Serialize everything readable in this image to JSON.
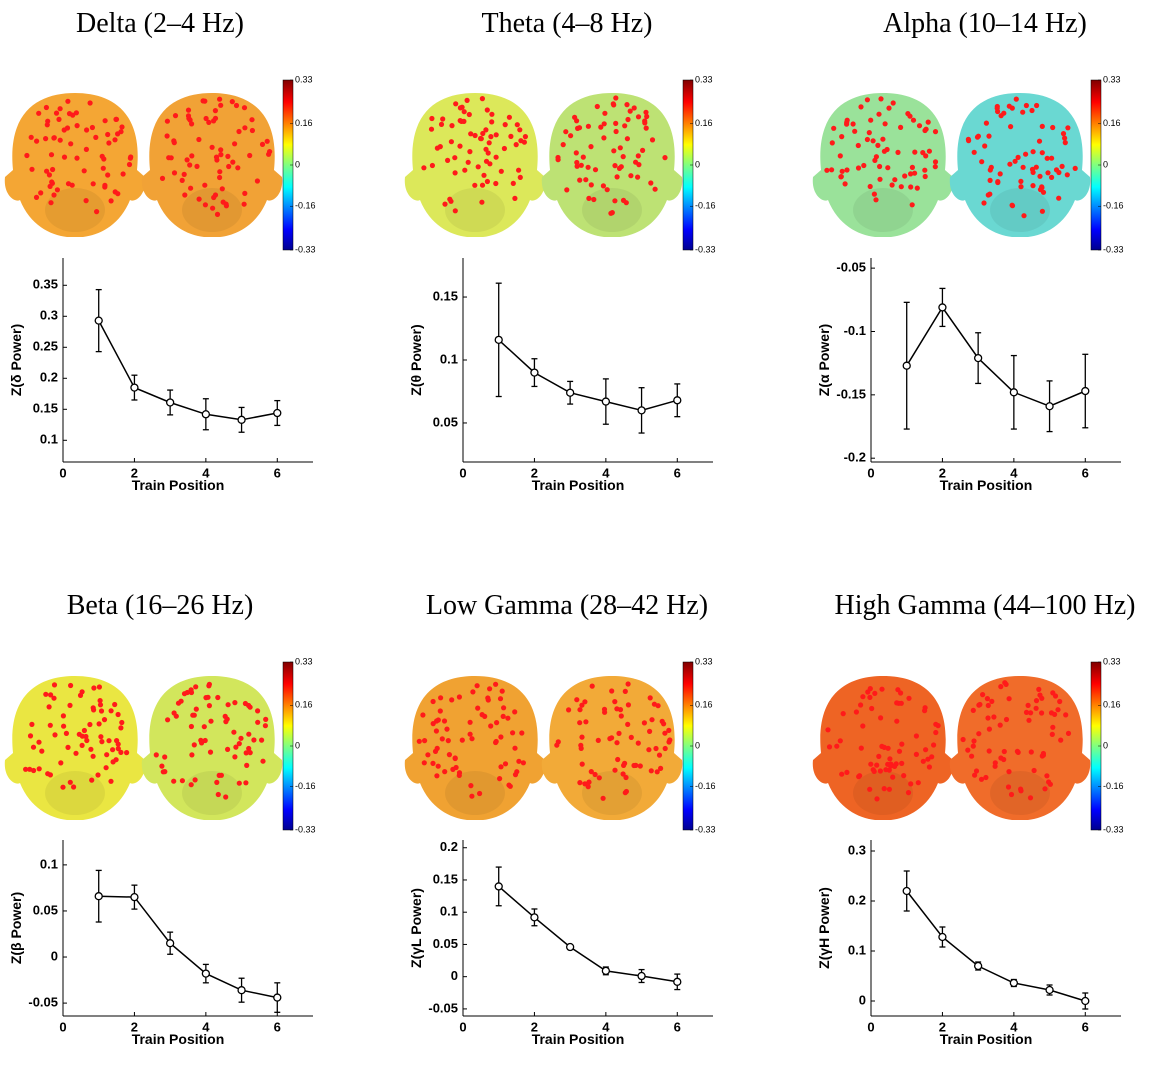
{
  "chart_data": [
    {
      "type": "line",
      "title": "Delta (2–4 Hz)",
      "xlabel": "Train Position",
      "ylabel": "Z(δ Power)",
      "x": [
        1,
        2,
        3,
        4,
        5,
        6
      ],
      "values": [
        0.293,
        0.185,
        0.161,
        0.142,
        0.133,
        0.144
      ],
      "errors": [
        0.05,
        0.02,
        0.02,
        0.025,
        0.02,
        0.02
      ],
      "xlim": [
        0,
        7
      ],
      "xticks": [
        0,
        2,
        4,
        6
      ],
      "ylim": [
        0.065,
        0.394
      ],
      "yticks": [
        0.1,
        0.15,
        0.2,
        0.25,
        0.3,
        0.35
      ],
      "colorbar_ticks": [
        0.33,
        0.16,
        0,
        -0.16,
        -0.33
      ],
      "head_colors": [
        "#f4a634",
        "#f1a236"
      ]
    },
    {
      "type": "line",
      "title": "Theta (4–8 Hz)",
      "xlabel": "Train Position",
      "ylabel": "Z(θ Power)",
      "x": [
        1,
        2,
        3,
        4,
        5,
        6
      ],
      "values": [
        0.116,
        0.09,
        0.074,
        0.067,
        0.06,
        0.068
      ],
      "errors": [
        0.045,
        0.011,
        0.009,
        0.018,
        0.018,
        0.013
      ],
      "xlim": [
        0,
        7
      ],
      "xticks": [
        0,
        2,
        4,
        6
      ],
      "ylim": [
        0.019,
        0.181
      ],
      "yticks": [
        0.05,
        0.1,
        0.15
      ],
      "colorbar_ticks": [
        0.33,
        0.16,
        0,
        -0.16,
        -0.33
      ],
      "head_colors": [
        "#dce85a",
        "#bde274"
      ]
    },
    {
      "type": "line",
      "title": "Alpha (10–14 Hz)",
      "xlabel": "Train Position",
      "ylabel": "Z(α Power)",
      "x": [
        1,
        2,
        3,
        4,
        5,
        6
      ],
      "values": [
        -0.127,
        -0.081,
        -0.121,
        -0.148,
        -0.159,
        -0.147
      ],
      "errors": [
        0.05,
        0.015,
        0.02,
        0.029,
        0.02,
        0.029
      ],
      "xlim": [
        0,
        7
      ],
      "xticks": [
        0,
        2,
        4,
        6
      ],
      "ylim": [
        -0.203,
        -0.042
      ],
      "yticks": [
        -0.2,
        -0.15,
        -0.1,
        -0.05
      ],
      "colorbar_ticks": [
        0.33,
        0.16,
        0,
        -0.16,
        -0.33
      ],
      "head_colors": [
        "#9ae29a",
        "#6ad8d2"
      ]
    },
    {
      "type": "line",
      "title": "Beta (16–26 Hz)",
      "xlabel": "Train Position",
      "ylabel": "Z(β Power)",
      "x": [
        1,
        2,
        3,
        4,
        5,
        6
      ],
      "values": [
        0.066,
        0.065,
        0.015,
        -0.018,
        -0.036,
        -0.044
      ],
      "errors": [
        0.028,
        0.013,
        0.012,
        0.01,
        0.013,
        0.016
      ],
      "xlim": [
        0,
        7
      ],
      "xticks": [
        0,
        2,
        4,
        6
      ],
      "ylim": [
        -0.064,
        0.127
      ],
      "yticks": [
        -0.05,
        0,
        0.05,
        0.1
      ],
      "colorbar_ticks": [
        0.33,
        0.16,
        0,
        -0.16,
        -0.33
      ],
      "head_colors": [
        "#eae642",
        "#d2e65c"
      ]
    },
    {
      "type": "line",
      "title": "Low Gamma (28–42 Hz)",
      "xlabel": "Train Position",
      "ylabel": "Z(γL Power)",
      "x": [
        1,
        2,
        3,
        4,
        5,
        6
      ],
      "values": [
        0.14,
        0.092,
        0.046,
        0.009,
        0.001,
        -0.008
      ],
      "errors": [
        0.03,
        0.013,
        0.002,
        0.006,
        0.01,
        0.012
      ],
      "xlim": [
        0,
        7
      ],
      "xticks": [
        0,
        2,
        4,
        6
      ],
      "ylim": [
        -0.061,
        0.212
      ],
      "yticks": [
        -0.05,
        0,
        0.05,
        0.1,
        0.15,
        0.2
      ],
      "colorbar_ticks": [
        0.33,
        0.16,
        0,
        -0.16,
        -0.33
      ],
      "head_colors": [
        "#f0a232",
        "#f2aa38"
      ]
    },
    {
      "type": "line",
      "title": "High Gamma (44–100 Hz)",
      "xlabel": "Train Position",
      "ylabel": "Z(γH Power)",
      "x": [
        1,
        2,
        3,
        4,
        5,
        6
      ],
      "values": [
        0.22,
        0.128,
        0.07,
        0.036,
        0.022,
        0.0
      ],
      "errors": [
        0.04,
        0.02,
        0.008,
        0.007,
        0.01,
        0.016
      ],
      "xlim": [
        0,
        7
      ],
      "xticks": [
        0,
        2,
        4,
        6
      ],
      "ylim": [
        -0.03,
        0.322
      ],
      "yticks": [
        0,
        0.1,
        0.2,
        0.3
      ],
      "colorbar_ticks": [
        0.33,
        0.16,
        0,
        -0.16,
        -0.33
      ],
      "head_colors": [
        "#ee6424",
        "#f06c2a"
      ]
    }
  ]
}
